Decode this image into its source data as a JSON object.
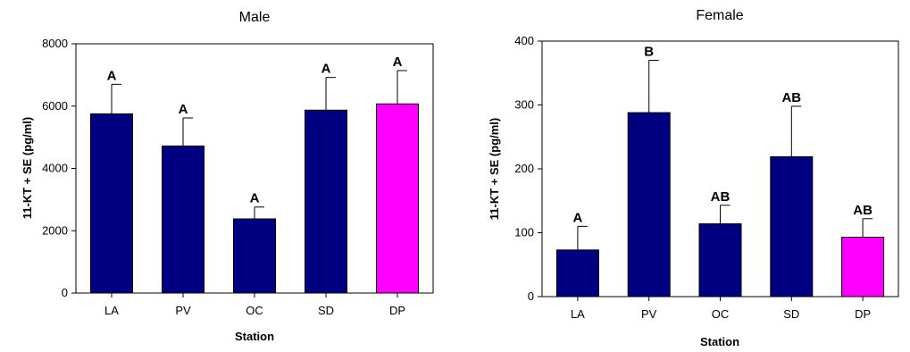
{
  "chart_data": [
    {
      "type": "bar",
      "title": "Male",
      "xlabel": "Station",
      "ylabel": "11-KT + SE (pg/ml)",
      "categories": [
        "LA",
        "PV",
        "OC",
        "SD",
        "DP"
      ],
      "values": [
        5750,
        4720,
        2380,
        5870,
        6070
      ],
      "errors": [
        950,
        900,
        380,
        1050,
        1070
      ],
      "significance": [
        "A",
        "A",
        "A",
        "A",
        "A"
      ],
      "ylim": [
        0,
        8000
      ],
      "yticks": [
        0,
        2000,
        4000,
        6000,
        8000
      ],
      "ytick_labels": [
        "0",
        "2000",
        "4000",
        "6000",
        "8000"
      ],
      "bar_colors": [
        "#000080",
        "#000080",
        "#000080",
        "#000080",
        "#FF00FF"
      ],
      "grid": false
    },
    {
      "type": "bar",
      "title": "Female",
      "xlabel": "Station",
      "ylabel": "11-KT + SE (pg/ml)",
      "categories": [
        "LA",
        "PV",
        "OC",
        "SD",
        "DP"
      ],
      "values": [
        73,
        288,
        114,
        219,
        93
      ],
      "errors": [
        37,
        82,
        29,
        79,
        29
      ],
      "significance": [
        "A",
        "B",
        "AB",
        "AB",
        "AB"
      ],
      "ylim": [
        0,
        400
      ],
      "yticks": [
        0,
        100,
        200,
        300,
        400
      ],
      "ytick_labels": [
        "0",
        "100",
        "200",
        "300",
        "400"
      ],
      "bar_colors": [
        "#000080",
        "#000080",
        "#000080",
        "#000080",
        "#FF00FF"
      ],
      "grid": false
    }
  ]
}
